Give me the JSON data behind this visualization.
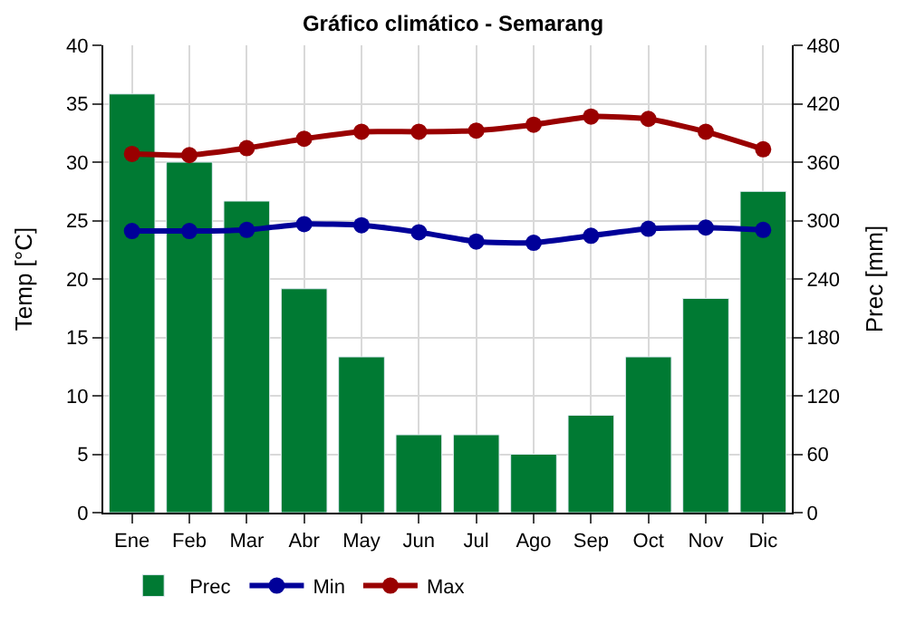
{
  "chart_data": {
    "type": "bar",
    "title": "Gráfico climático - Semarang",
    "ylabel": "Temp [°C]",
    "y2label": "Prec [mm]",
    "categories": [
      "Ene",
      "Feb",
      "Mar",
      "Abr",
      "May",
      "Jun",
      "Jul",
      "Ago",
      "Sep",
      "Oct",
      "Nov",
      "Dic"
    ],
    "series": [
      {
        "name": "Prec",
        "axis": "y2",
        "color": "#007a33",
        "values": [
          430,
          360,
          320,
          230,
          160,
          80,
          80,
          60,
          100,
          160,
          220,
          330
        ]
      },
      {
        "name": "Min",
        "type": "line",
        "axis": "y",
        "color": "#000099",
        "values": [
          24.1,
          24.1,
          24.2,
          24.7,
          24.6,
          24.0,
          23.2,
          23.1,
          23.7,
          24.3,
          24.4,
          24.2
        ]
      },
      {
        "name": "Max",
        "type": "line",
        "axis": "y",
        "color": "#990000",
        "values": [
          30.7,
          30.6,
          31.2,
          32.0,
          32.6,
          32.6,
          32.7,
          33.2,
          33.9,
          33.7,
          32.6,
          31.1
        ]
      }
    ],
    "ylim": [
      0,
      40
    ],
    "yticks": [
      0,
      5,
      10,
      15,
      20,
      25,
      30,
      35,
      40
    ],
    "y2lim": [
      0,
      480
    ],
    "y2ticks": [
      0,
      60,
      120,
      180,
      240,
      300,
      360,
      420,
      480
    ],
    "grid": true,
    "legend": "bottom",
    "marker": "circle",
    "line_style": "solid"
  }
}
